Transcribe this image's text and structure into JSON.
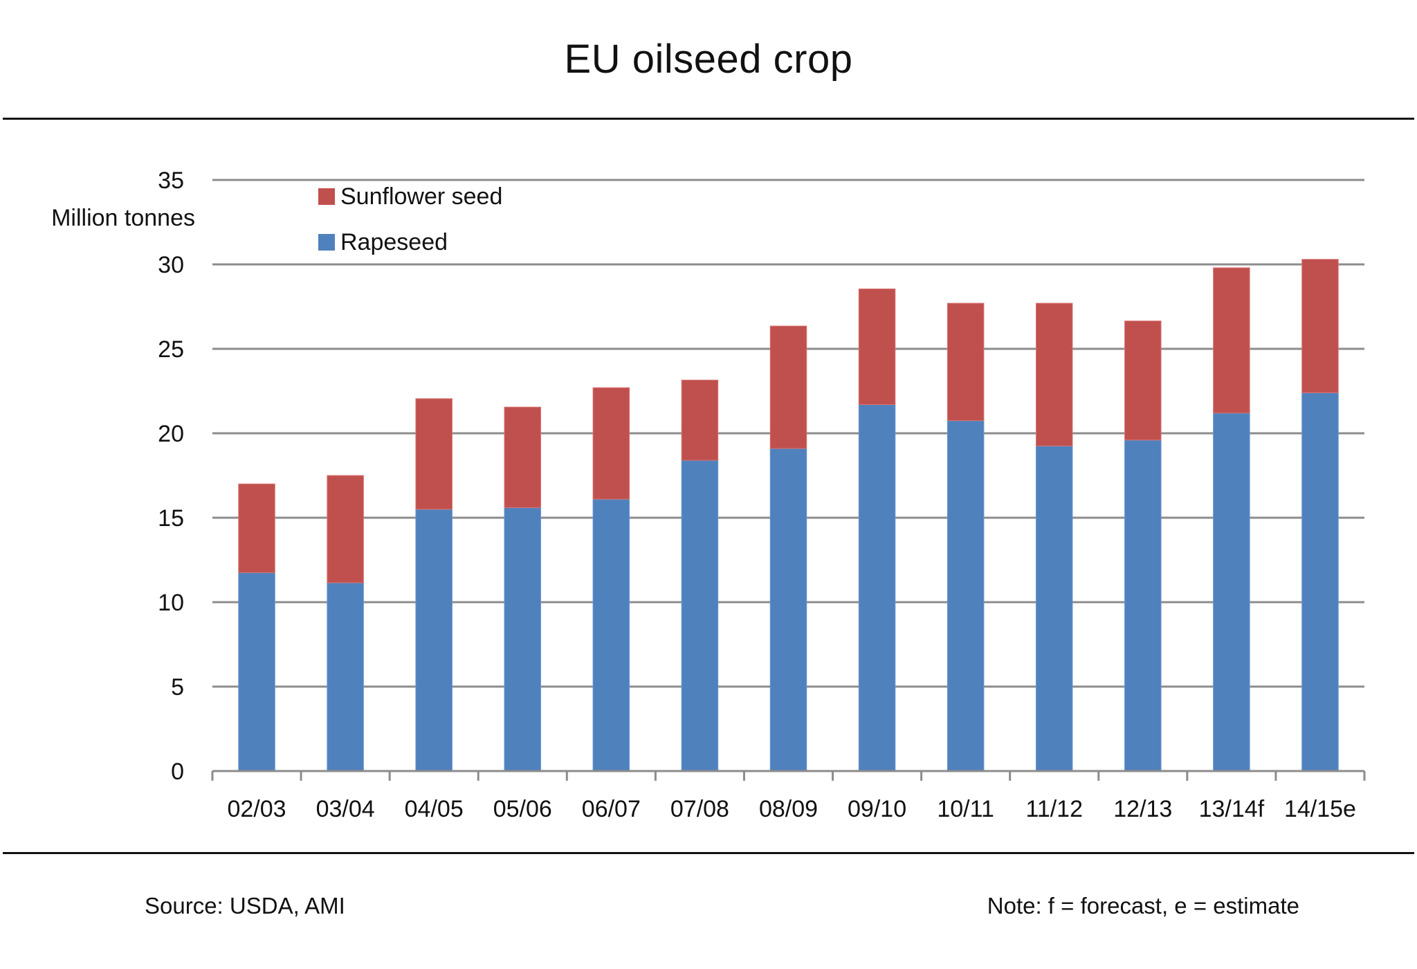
{
  "chart_data": {
    "type": "bar",
    "stacked": true,
    "title": "EU oilseed crop",
    "xlabel": "",
    "ylabel": "Million tonnes",
    "ylim": [
      0,
      35
    ],
    "yticks": [
      0,
      5,
      10,
      15,
      20,
      25,
      30,
      35
    ],
    "grid": true,
    "legend_position": "top-left",
    "categories": [
      "02/03",
      "03/04",
      "04/05",
      "05/06",
      "06/07",
      "07/08",
      "08/09",
      "09/10",
      "10/11",
      "11/12",
      "12/13",
      "13/14f",
      "14/15e"
    ],
    "series": [
      {
        "name": "Rapeseed",
        "color": "#4f81bd",
        "values": [
          11.75,
          11.15,
          15.5,
          15.6,
          16.1,
          18.4,
          19.1,
          21.7,
          20.75,
          19.25,
          19.6,
          21.2,
          22.4
        ]
      },
      {
        "name": "Sunflower seed",
        "color": "#c0504d",
        "values": [
          5.25,
          6.35,
          6.55,
          5.95,
          6.6,
          4.75,
          7.25,
          6.85,
          6.95,
          8.45,
          7.05,
          8.6,
          7.9
        ]
      }
    ],
    "totals": [
      17.0,
      17.5,
      22.05,
      21.55,
      22.7,
      23.15,
      26.35,
      28.55,
      27.7,
      27.7,
      26.65,
      29.8,
      30.3
    ],
    "legend": [
      "Sunflower seed",
      "Rapeseed"
    ]
  },
  "footer": {
    "source": "Source: USDA, AMI",
    "note": "Note: f = forecast, e = estimate"
  },
  "colors": {
    "gridline": "#8c8c8c",
    "axis": "#8c8c8c",
    "rule": "#111111"
  }
}
